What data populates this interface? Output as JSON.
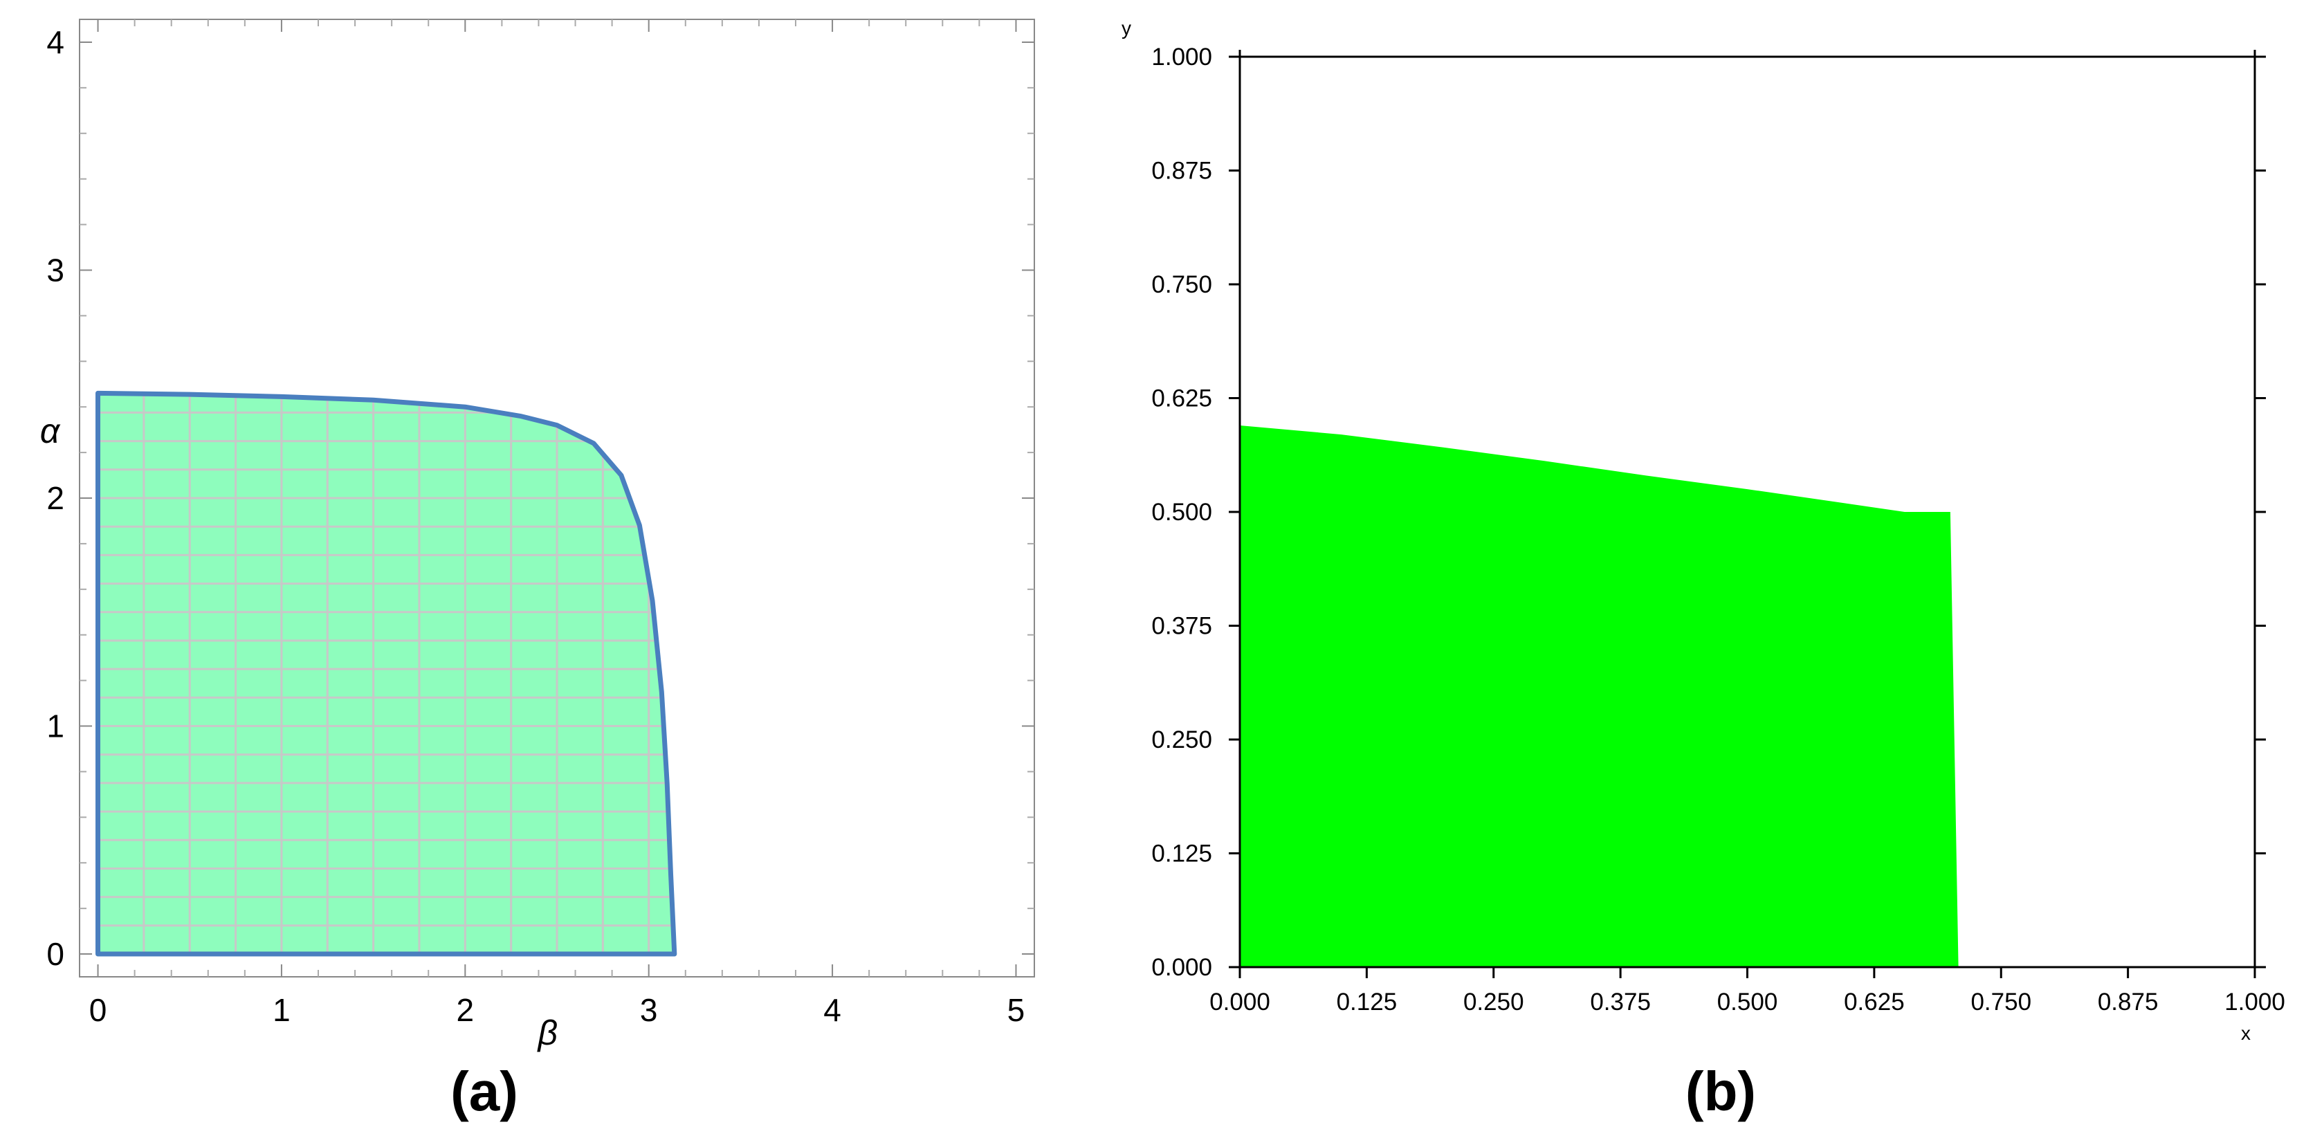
{
  "chart_data": [
    {
      "panel_label": "(a)",
      "type": "area",
      "xlabel": "β",
      "ylabel": "α",
      "xlim": [
        -0.1,
        5.1
      ],
      "ylim": [
        -0.1,
        4.1
      ],
      "xticks": [
        "0",
        "1",
        "2",
        "3",
        "4",
        "5"
      ],
      "yticks": [
        "0",
        "1",
        "2",
        "3",
        "4"
      ],
      "grid": false,
      "region": {
        "name": "",
        "fill_color": "#8efdbd",
        "edge_color": "#4a7fbf",
        "hatch_color": "#c8c8c8",
        "boundary": [
          [
            0.0,
            0.0
          ],
          [
            0.0,
            2.46
          ],
          [
            0.5,
            2.455
          ],
          [
            1.0,
            2.445
          ],
          [
            1.5,
            2.43
          ],
          [
            2.0,
            2.4
          ],
          [
            2.3,
            2.36
          ],
          [
            2.5,
            2.32
          ],
          [
            2.7,
            2.24
          ],
          [
            2.85,
            2.1
          ],
          [
            2.95,
            1.88
          ],
          [
            3.02,
            1.55
          ],
          [
            3.07,
            1.15
          ],
          [
            3.1,
            0.75
          ],
          [
            3.12,
            0.35
          ],
          [
            3.14,
            0.0
          ]
        ]
      }
    },
    {
      "panel_label": "(b)",
      "type": "area",
      "xlabel": "x",
      "ylabel": "y",
      "xlim": [
        0,
        1
      ],
      "ylim": [
        0,
        1
      ],
      "xticks": [
        "0.000",
        "0.125",
        "0.250",
        "0.375",
        "0.500",
        "0.625",
        "0.750",
        "0.875",
        "1.000"
      ],
      "yticks": [
        "0.000",
        "0.125",
        "0.250",
        "0.375",
        "0.500",
        "0.625",
        "0.750",
        "0.875",
        "1.000"
      ],
      "grid": false,
      "region": {
        "name": "",
        "fill_color": "#00ff00",
        "boundary": [
          [
            0.0,
            0.0
          ],
          [
            0.0,
            0.595
          ],
          [
            0.1,
            0.585
          ],
          [
            0.2,
            0.571
          ],
          [
            0.3,
            0.556
          ],
          [
            0.4,
            0.54
          ],
          [
            0.5,
            0.525
          ],
          [
            0.6,
            0.509
          ],
          [
            0.655,
            0.5
          ],
          [
            0.7,
            0.5
          ],
          [
            0.708,
            0.0
          ]
        ]
      }
    }
  ]
}
